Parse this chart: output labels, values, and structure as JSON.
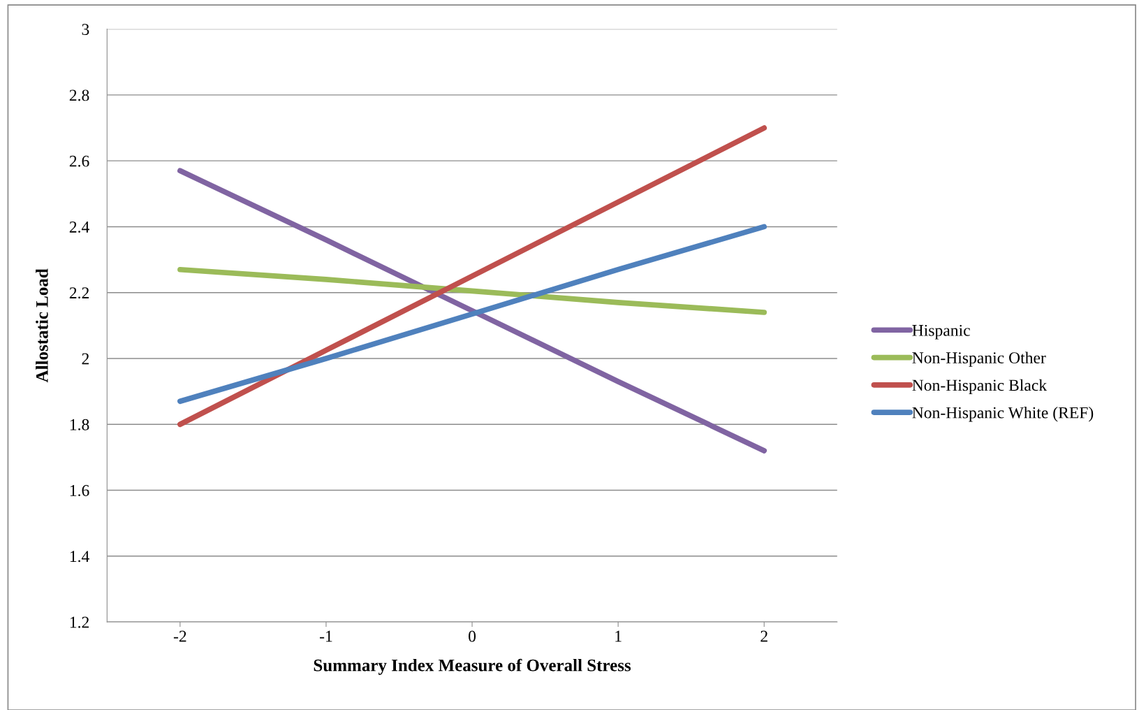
{
  "chart_data": {
    "type": "line",
    "xlabel": "Summary Index Measure of Overall Stress",
    "ylabel": "Allostatic Load",
    "categories": [
      "-2",
      "-1",
      "0",
      "1",
      "2"
    ],
    "series": [
      {
        "name": "Hispanic",
        "color": "#8064a2",
        "values": [
          2.57,
          2.36,
          2.145,
          1.93,
          1.72
        ]
      },
      {
        "name": "Non-Hispanic Other",
        "color": "#9bbb59",
        "values": [
          2.27,
          2.24,
          2.205,
          2.17,
          2.14
        ]
      },
      {
        "name": "Non-Hispanic Black",
        "color": "#c0504d",
        "values": [
          1.8,
          2.025,
          2.25,
          2.475,
          2.7
        ]
      },
      {
        "name": "Non-Hispanic White (REF)",
        "color": "#4f81bd",
        "values": [
          1.87,
          2.0,
          2.135,
          2.27,
          2.4
        ]
      }
    ],
    "ylim": [
      1.2,
      3
    ],
    "yticks": [
      1.2,
      1.4,
      1.6,
      1.8,
      2,
      2.2,
      2.4,
      2.6,
      2.8,
      3
    ],
    "grid": "y",
    "legend": "right",
    "marker": "none",
    "line_style": "solid"
  }
}
